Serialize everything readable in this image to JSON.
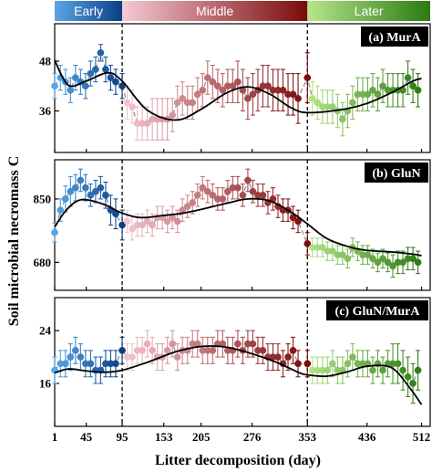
{
  "phases": [
    {
      "label": "Early",
      "color_start": "#5aa6e6",
      "color_end": "#0b3f86",
      "day_start": 1,
      "day_end": 95
    },
    {
      "label": "Middle",
      "color_start": "#f6c9d3",
      "color_end": "#7b0a0a",
      "day_start": 95,
      "day_end": 353
    },
    {
      "label": "Later",
      "color_start": "#b6e68a",
      "color_end": "#2b7a12",
      "day_start": 353,
      "day_end": 512
    }
  ],
  "x_axis": {
    "label": "Litter decomposition (day)",
    "ticks": [
      1,
      45,
      95,
      153,
      205,
      276,
      353,
      436,
      512
    ],
    "xlim": [
      1,
      524
    ]
  },
  "y_axis_title": "Soil microbial necromass C",
  "boundaries": [
    95,
    353
  ],
  "chart_data": [
    {
      "type": "scatter",
      "panel_label": "(a) MurA",
      "ylim": [
        26,
        57
      ],
      "yticks": [
        36,
        48
      ],
      "x": [
        1,
        9,
        16,
        23,
        30,
        37,
        44,
        51,
        58,
        65,
        72,
        79,
        86,
        95,
        102,
        109,
        116,
        123,
        130,
        137,
        144,
        151,
        158,
        165,
        172,
        179,
        186,
        193,
        200,
        207,
        214,
        221,
        228,
        235,
        242,
        249,
        256,
        263,
        270,
        277,
        284,
        291,
        298,
        305,
        312,
        319,
        326,
        333,
        340,
        353,
        360,
        367,
        374,
        381,
        388,
        395,
        402,
        409,
        416,
        423,
        430,
        437,
        444,
        451,
        458,
        465,
        472,
        479,
        486,
        493,
        500,
        507
      ],
      "y": [
        42,
        44,
        43,
        41,
        44,
        43,
        42,
        45,
        46,
        50,
        46,
        44,
        43,
        42,
        38,
        37,
        33,
        33,
        33,
        34,
        34,
        34,
        34,
        35,
        38,
        39,
        38,
        38,
        40,
        41,
        44,
        43,
        42,
        41,
        42,
        42,
        43,
        41,
        39,
        40,
        41,
        42,
        42,
        41,
        41,
        41,
        40,
        40,
        39,
        44,
        39,
        38,
        37,
        37,
        37,
        36,
        34,
        36,
        38,
        40,
        40,
        40,
        41,
        40,
        42,
        41,
        41,
        41,
        41,
        44,
        42,
        41
      ],
      "err": [
        3,
        3,
        3,
        3,
        3,
        3,
        3,
        3,
        3,
        2,
        3,
        3,
        3,
        3,
        4,
        4,
        4,
        4,
        4,
        5,
        5,
        5,
        5,
        4,
        4,
        4,
        4,
        4,
        4,
        4,
        4,
        4,
        4,
        4,
        4,
        4,
        5,
        5,
        5,
        5,
        5,
        5,
        5,
        5,
        5,
        5,
        5,
        5,
        6,
        6,
        4,
        4,
        4,
        4,
        4,
        4,
        4,
        4,
        4,
        4,
        4,
        4,
        4,
        4,
        4,
        4,
        4,
        4,
        4,
        4,
        4,
        4
      ],
      "fit": [
        [
          1,
          48.2
        ],
        [
          20,
          42.2
        ],
        [
          45,
          43.2
        ],
        [
          75,
          45.2
        ],
        [
          95,
          43.2
        ],
        [
          130,
          36.2
        ],
        [
          170,
          33.8
        ],
        [
          205,
          36.4
        ],
        [
          240,
          40.3
        ],
        [
          270,
          41.8
        ],
        [
          300,
          40.1
        ],
        [
          330,
          36.8
        ],
        [
          353,
          35.6
        ],
        [
          400,
          36.3
        ],
        [
          436,
          37.8
        ],
        [
          470,
          40.4
        ],
        [
          500,
          43.2
        ],
        [
          512,
          43.8
        ]
      ]
    },
    {
      "type": "scatter",
      "panel_label": "(b) GluN",
      "ylim": [
        605,
        955
      ],
      "yticks": [
        680,
        850
      ],
      "x": [
        1,
        9,
        16,
        23,
        30,
        37,
        44,
        51,
        58,
        65,
        72,
        79,
        86,
        95,
        102,
        109,
        116,
        123,
        130,
        137,
        144,
        151,
        158,
        165,
        172,
        179,
        186,
        193,
        200,
        207,
        214,
        221,
        228,
        235,
        242,
        249,
        256,
        263,
        270,
        277,
        284,
        291,
        298,
        305,
        312,
        319,
        326,
        333,
        340,
        353,
        360,
        367,
        374,
        381,
        388,
        395,
        402,
        409,
        416,
        423,
        430,
        437,
        444,
        451,
        458,
        465,
        472,
        479,
        486,
        493,
        500,
        507
      ],
      "y": [
        760,
        820,
        850,
        870,
        880,
        900,
        880,
        860,
        870,
        880,
        860,
        820,
        810,
        780,
        790,
        770,
        780,
        780,
        790,
        780,
        800,
        800,
        790,
        800,
        790,
        820,
        830,
        840,
        860,
        880,
        870,
        860,
        850,
        850,
        870,
        880,
        880,
        860,
        900,
        870,
        860,
        860,
        840,
        850,
        830,
        820,
        820,
        800,
        790,
        730,
        720,
        720,
        720,
        710,
        710,
        700,
        700,
        690,
        720,
        710,
        700,
        700,
        690,
        680,
        690,
        680,
        670,
        680,
        680,
        690,
        690,
        680
      ],
      "err": [
        25,
        30,
        35,
        40,
        35,
        30,
        35,
        30,
        30,
        30,
        35,
        40,
        40,
        40,
        30,
        30,
        30,
        30,
        30,
        30,
        30,
        30,
        30,
        30,
        30,
        30,
        30,
        30,
        30,
        30,
        30,
        30,
        30,
        30,
        30,
        30,
        30,
        30,
        30,
        30,
        30,
        30,
        30,
        30,
        30,
        30,
        30,
        30,
        30,
        30,
        25,
        25,
        25,
        25,
        25,
        25,
        25,
        25,
        25,
        25,
        25,
        25,
        25,
        25,
        25,
        25,
        30,
        30,
        30,
        30,
        30,
        30
      ],
      "fit": [
        [
          1,
          775
        ],
        [
          15,
          815
        ],
        [
          30,
          842
        ],
        [
          45,
          848
        ],
        [
          70,
          835
        ],
        [
          95,
          812
        ],
        [
          120,
          800
        ],
        [
          150,
          805
        ],
        [
          180,
          812
        ],
        [
          205,
          822
        ],
        [
          240,
          838
        ],
        [
          270,
          850
        ],
        [
          300,
          845
        ],
        [
          330,
          815
        ],
        [
          353,
          783
        ],
        [
          380,
          744
        ],
        [
          410,
          722
        ],
        [
          436,
          712
        ],
        [
          470,
          708
        ],
        [
          500,
          702
        ],
        [
          512,
          698
        ]
      ]
    },
    {
      "type": "scatter",
      "panel_label": "(c) GluN/MurA",
      "ylim": [
        9.5,
        29
      ],
      "yticks": [
        16,
        24
      ],
      "x": [
        1,
        9,
        16,
        23,
        30,
        37,
        44,
        51,
        58,
        65,
        72,
        79,
        86,
        95,
        102,
        109,
        116,
        123,
        130,
        137,
        144,
        151,
        158,
        165,
        172,
        179,
        186,
        193,
        200,
        207,
        214,
        221,
        228,
        235,
        242,
        249,
        256,
        263,
        270,
        277,
        284,
        291,
        298,
        305,
        312,
        319,
        326,
        333,
        340,
        353,
        360,
        367,
        374,
        381,
        388,
        395,
        402,
        409,
        416,
        423,
        430,
        437,
        444,
        451,
        458,
        465,
        472,
        479,
        486,
        493,
        500,
        507
      ],
      "y": [
        18,
        19,
        19,
        20,
        21,
        20,
        19,
        19,
        18,
        18,
        19,
        19,
        19,
        21,
        20,
        20,
        21,
        21,
        22,
        21,
        20,
        20,
        21,
        22,
        20,
        21,
        21,
        22,
        22,
        21,
        21,
        21,
        22,
        22,
        21,
        21,
        22,
        21,
        22,
        22,
        21,
        21,
        20,
        20,
        20,
        19,
        20,
        21,
        19,
        19,
        18,
        18,
        18,
        18,
        19,
        18,
        18,
        19,
        20,
        19,
        19,
        19,
        18,
        19,
        18,
        19,
        19,
        19,
        18,
        17,
        16,
        18
      ],
      "err": [
        2,
        2,
        2,
        2,
        2,
        2,
        2,
        2,
        2,
        2,
        2,
        2,
        2,
        2,
        2,
        2,
        2,
        2,
        2,
        2,
        2,
        2,
        2,
        2,
        2,
        2,
        2,
        2,
        2,
        2,
        2,
        2,
        2,
        2,
        2,
        2,
        2,
        2,
        2,
        2,
        2,
        2,
        2,
        2,
        2,
        2,
        2,
        2,
        2,
        2,
        2,
        2,
        2,
        2,
        2,
        2,
        2,
        2,
        2,
        2,
        2,
        2,
        2,
        2,
        2,
        2,
        3,
        3,
        3,
        3,
        3,
        3
      ],
      "fit": [
        [
          1,
          17.6
        ],
        [
          20,
          18.2
        ],
        [
          45,
          17.9
        ],
        [
          70,
          17.7
        ],
        [
          95,
          18.0
        ],
        [
          130,
          19.2
        ],
        [
          170,
          20.8
        ],
        [
          205,
          21.6
        ],
        [
          240,
          21.5
        ],
        [
          276,
          20.5
        ],
        [
          310,
          19.2
        ],
        [
          340,
          17.7
        ],
        [
          353,
          17.3
        ],
        [
          380,
          17.1
        ],
        [
          410,
          17.8
        ],
        [
          436,
          18.6
        ],
        [
          470,
          18.4
        ],
        [
          495,
          15.4
        ],
        [
          512,
          12.8
        ]
      ]
    }
  ]
}
